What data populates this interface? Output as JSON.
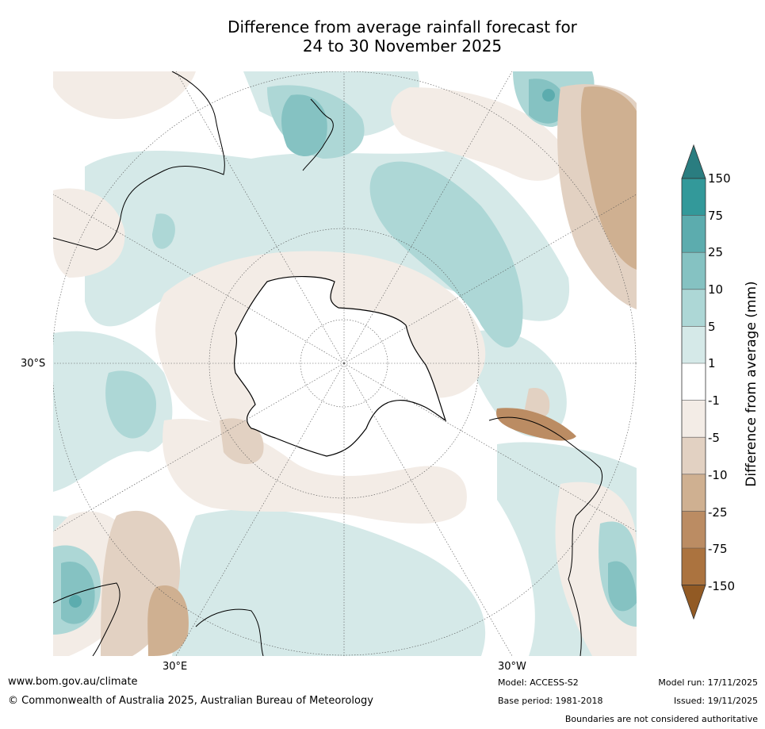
{
  "title": {
    "line1": "Difference from average rainfall forecast for",
    "line2": "24 to 30 November 2025"
  },
  "map": {
    "projection": "south-polar-stereographic",
    "lat_labels": [
      "30°S"
    ],
    "lon_labels": [
      "30°E",
      "30°W"
    ]
  },
  "colorbar": {
    "title": "Difference from average (mm)",
    "ticks": [
      "150",
      "75",
      "25",
      "10",
      "5",
      "1",
      "-1",
      "-5",
      "-10",
      "-25",
      "-75",
      "-150"
    ],
    "colors": {
      "above_150": "#2a7d80",
      "c75_150": "#33999a",
      "c25_75": "#5cacae",
      "c10_25": "#85c2c2",
      "c5_10": "#add7d6",
      "c1_5": "#d5e9e8",
      "neutral": "#ffffff",
      "cm1_m5": "#f3ece6",
      "cm5_m10": "#e2d1c2",
      "cm10_m25": "#cfb091",
      "cm25_m75": "#bb8c63",
      "cm75_m150": "#ab733f",
      "below_m150": "#925a24"
    }
  },
  "footer": {
    "website": "www.bom.gov.au/climate",
    "copyright": "© Commonwealth of Australia 2025, Australian Bureau of Meteorology",
    "model": "Model: ACCESS-S2",
    "base_period": "Base period: 1981-2018",
    "model_run": "Model run: 17/11/2025",
    "issued": "Issued: 19/11/2025",
    "disclaimer": "Boundaries are not considered authoritative"
  }
}
